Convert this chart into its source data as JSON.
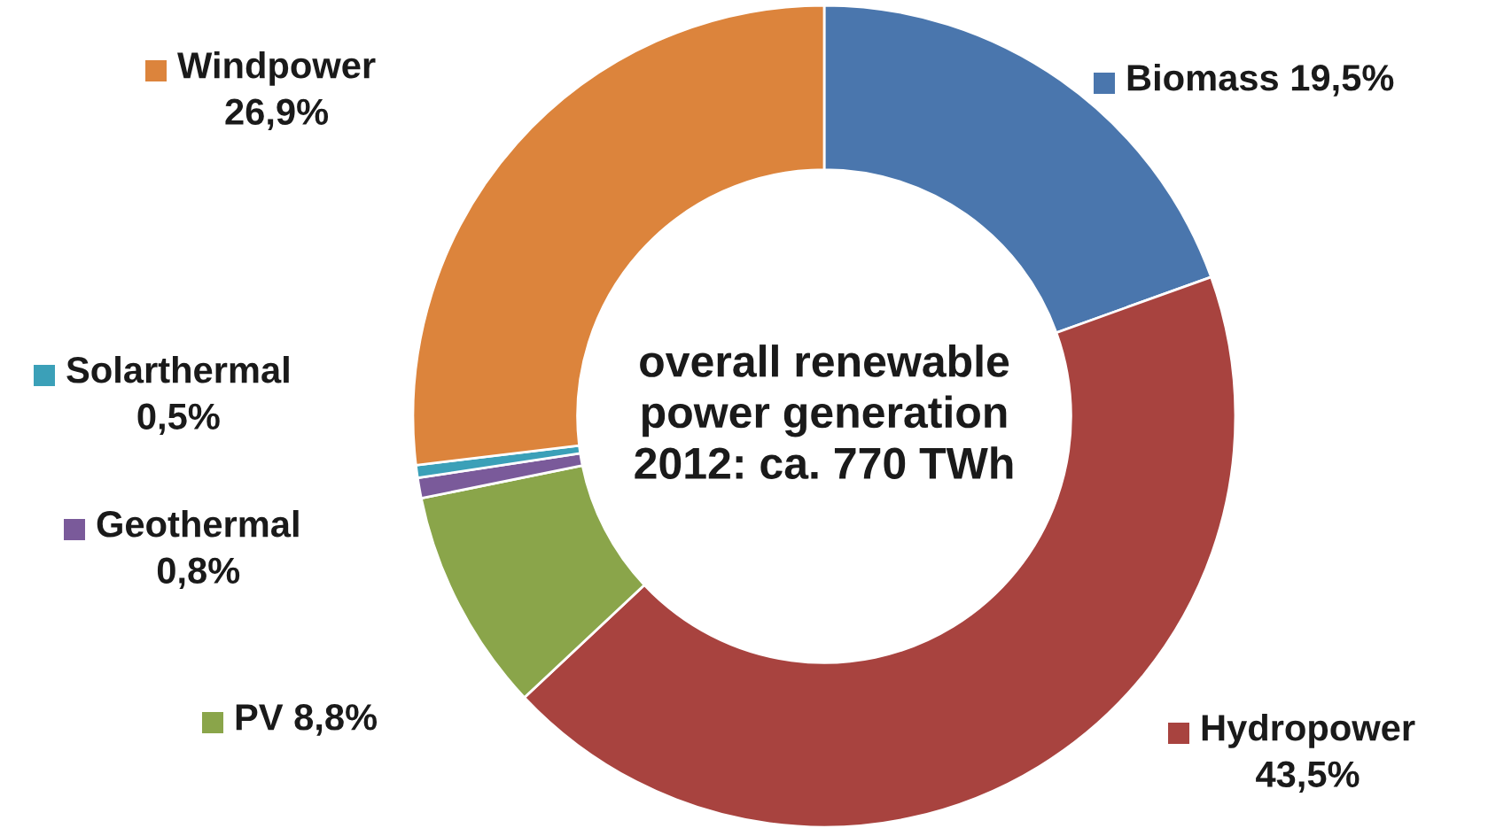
{
  "chart_data": {
    "type": "donut",
    "categories": [
      "Biomass",
      "Hydropower",
      "PV",
      "Geothermal",
      "Solarthermal",
      "Windpower"
    ],
    "values": [
      19.5,
      43.5,
      8.8,
      0.8,
      0.5,
      26.9
    ],
    "value_labels": [
      "19,5%",
      "43,5%",
      "8,8%",
      "0,8%",
      "0,5%",
      "26,9%"
    ],
    "colors": [
      "#4a76ad",
      "#a8433f",
      "#8aa54a",
      "#7a5a9a",
      "#3ba0b8",
      "#dc843c"
    ],
    "legend": "left",
    "annotations": [
      "overall renewable\npower generation\n2012: ca. 770 TWh"
    ]
  }
}
